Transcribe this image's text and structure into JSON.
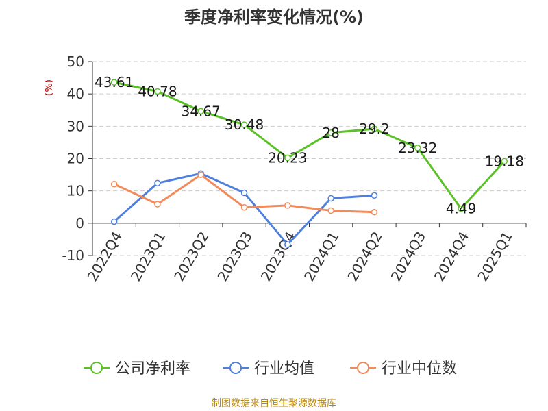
{
  "chart_data": {
    "type": "line",
    "title": "季度净利率变化情况(%)",
    "ylabel": "(%)",
    "categories": [
      "2022Q4",
      "2023Q1",
      "2023Q2",
      "2023Q3",
      "2023Q4",
      "2024Q1",
      "2024Q2",
      "2024Q3",
      "2024Q4",
      "2025Q1"
    ],
    "ylim": [
      -10,
      50
    ],
    "yticks": [
      -10,
      0,
      10,
      20,
      30,
      40,
      50
    ],
    "grid": true,
    "legend_position": "bottom",
    "series": [
      {
        "name": "公司净利率",
        "color": "#5ac126",
        "values": [
          43.61,
          40.78,
          34.67,
          30.48,
          20.23,
          28,
          29.2,
          23.32,
          4.49,
          19.18
        ],
        "labels": [
          "43.61",
          "40.78",
          "34.67",
          "30.48",
          "20.23",
          "28",
          "29.2",
          "23.32",
          "4.49",
          "19.18"
        ]
      },
      {
        "name": "行业均值",
        "color": "#4e7fdd",
        "values": [
          0.5,
          12.4,
          15.4,
          9.4,
          -6.6,
          7.7,
          8.6,
          null,
          null,
          null
        ]
      },
      {
        "name": "行业中位数",
        "color": "#f28a5a",
        "values": [
          12.1,
          5.9,
          15,
          4.9,
          5.5,
          3.9,
          3.4,
          null,
          null,
          null
        ]
      }
    ]
  },
  "footer": "制图数据来自恒生聚源数据库"
}
